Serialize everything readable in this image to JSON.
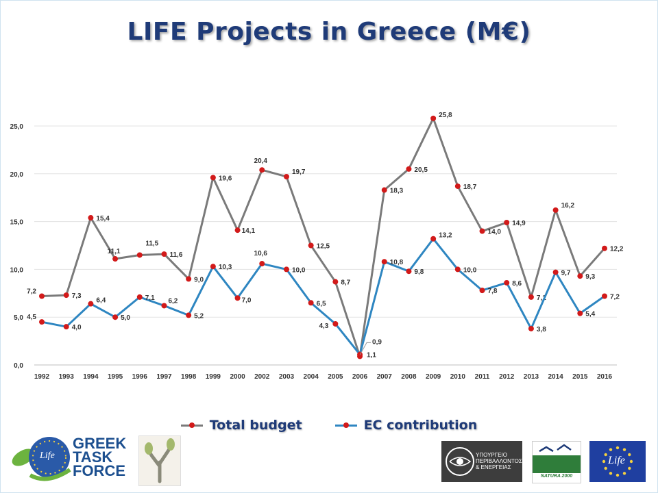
{
  "title": "LIFE Projects in Greece (M€)",
  "colors": {
    "total": "#7a7a7a",
    "ec": "#2e86c1",
    "marker": "#d21a1a",
    "title": "#1f3b78"
  },
  "chart_data": {
    "type": "line",
    "title": "LIFE Projects in Greece (M€)",
    "categories": [
      "1992",
      "1993",
      "1994",
      "1995",
      "1996",
      "1997",
      "1998",
      "1999",
      "2000",
      "2002",
      "2003",
      "2004",
      "2005",
      "2006",
      "2007",
      "2008",
      "2009",
      "2010",
      "2011",
      "2012",
      "2013",
      "2014",
      "2015",
      "2016"
    ],
    "series": [
      {
        "name": "Total budget",
        "values": [
          7.2,
          7.3,
          15.4,
          11.1,
          11.5,
          11.6,
          9.0,
          19.6,
          14.1,
          20.4,
          19.7,
          12.5,
          8.7,
          0.9,
          18.3,
          20.5,
          25.8,
          18.7,
          14.0,
          14.9,
          7.1,
          16.2,
          9.3,
          12.2
        ]
      },
      {
        "name": "EC contribution",
        "values": [
          4.5,
          4.0,
          6.4,
          5.0,
          7.1,
          6.2,
          5.2,
          10.3,
          7.0,
          10.6,
          10.0,
          6.5,
          4.3,
          1.1,
          10.8,
          9.8,
          13.2,
          10.0,
          7.8,
          8.6,
          3.8,
          9.7,
          5.4,
          7.2
        ]
      }
    ],
    "data_labels": {
      "Total budget": [
        "7,2",
        "7,3",
        "15,4",
        "11,1",
        "11,5",
        "11,6",
        "9,0",
        "19,6",
        "14,1",
        "20,4",
        "19,7",
        "12,5",
        "8,7",
        "0,9",
        "18,3",
        "20,5",
        "25,8",
        "18,7",
        "14,0",
        "14,9",
        "7,1",
        "16,2",
        "9,3",
        "12,2"
      ],
      "EC contribution": [
        "4,5",
        "4,0",
        "6,4",
        "5,0",
        "7,1",
        "6,2",
        "5,2",
        "10,3",
        "7,0",
        "10,6",
        "10,0",
        "6,5",
        "4,3",
        "1,1",
        "10,8",
        "9,8",
        "13,2",
        "10,0",
        "7,8",
        "8,6",
        "3,8",
        "9,7",
        "5,4",
        "7,2"
      ]
    },
    "yticks": [
      "0,0",
      "5,0",
      "10,0",
      "15,0",
      "20,0",
      "25,0"
    ],
    "ylim": [
      0,
      25
    ],
    "grid": true,
    "legend": "bottom"
  },
  "legend": {
    "total_label": "Total budget",
    "ec_label": "EC contribution"
  },
  "logos": {
    "gtf_line1": "GREEK",
    "gtf_line2": "TASK",
    "gtf_line3": "FORCE",
    "life": "Life",
    "ministry_line1": "ΥΠΟΥΡΓΕΙΟ",
    "ministry_line2": "ΠΕΡΙΒΑΛΛΟΝΤΟΣ",
    "ministry_line3": "& ΕΝΕΡΓΕΙΑΣ",
    "natura": "NATURA 2000",
    "eu_life": "Life"
  }
}
